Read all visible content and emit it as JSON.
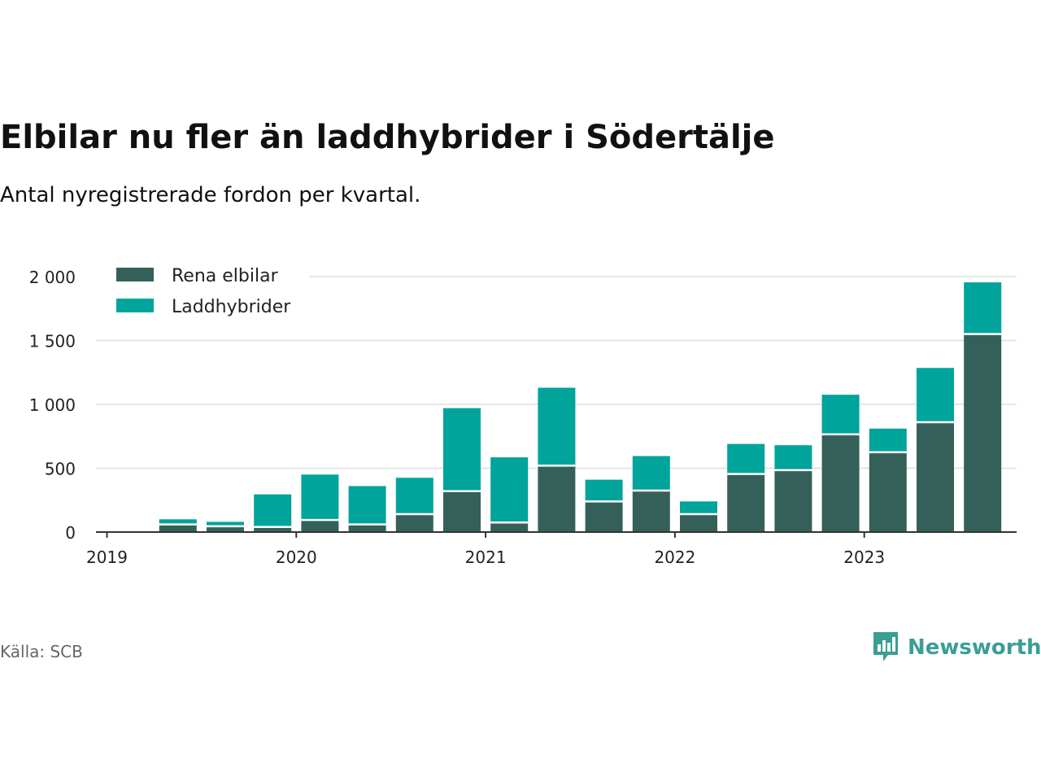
{
  "header": {
    "title": "Elbilar nu fler än laddhybrider i Södertälje",
    "subtitle": "Antal nyregistrerade fordon per kvartal."
  },
  "footer": {
    "source": "Källa: SCB",
    "brand": "Newsworthy"
  },
  "colors": {
    "elbilar": "#35605a",
    "laddhybrider": "#00a49a",
    "grid": "#dddddd",
    "axis": "#333333",
    "brand": "#3a9e94"
  },
  "chart_data": {
    "type": "bar",
    "stacked": true,
    "title": "Elbilar nu fler än laddhybrider i Södertälje",
    "subtitle": "Antal nyregistrerade fordon per kvartal.",
    "xlabel": "",
    "ylabel": "",
    "ylim": [
      0,
      2000
    ],
    "yticks": [
      0,
      500,
      1000,
      1500,
      2000
    ],
    "ytick_labels": [
      "0",
      "500",
      "1 000",
      "1 500",
      "2 000"
    ],
    "x_year_labels": [
      "2019",
      "2020",
      "2021",
      "2022",
      "2023"
    ],
    "legend_position": "top-left",
    "categories": [
      "2019 K2",
      "2019 K3",
      "2019 K4",
      "2020 K1",
      "2020 K2",
      "2020 K3",
      "2020 K4",
      "2021 K1",
      "2021 K2",
      "2021 K3",
      "2021 K4",
      "2022 K1",
      "2022 K2",
      "2022 K3",
      "2022 K4",
      "2023 K1",
      "2023 K2",
      "2023 K3"
    ],
    "series": [
      {
        "name": "Rena elbilar",
        "values": [
          60,
          45,
          40,
          95,
          60,
          140,
          320,
          75,
          520,
          240,
          325,
          140,
          455,
          485,
          765,
          625,
          860,
          1550
        ]
      },
      {
        "name": "Laddhybrider",
        "values": [
          40,
          35,
          255,
          355,
          300,
          285,
          650,
          510,
          610,
          170,
          270,
          100,
          235,
          195,
          310,
          185,
          425,
          405
        ]
      }
    ]
  }
}
